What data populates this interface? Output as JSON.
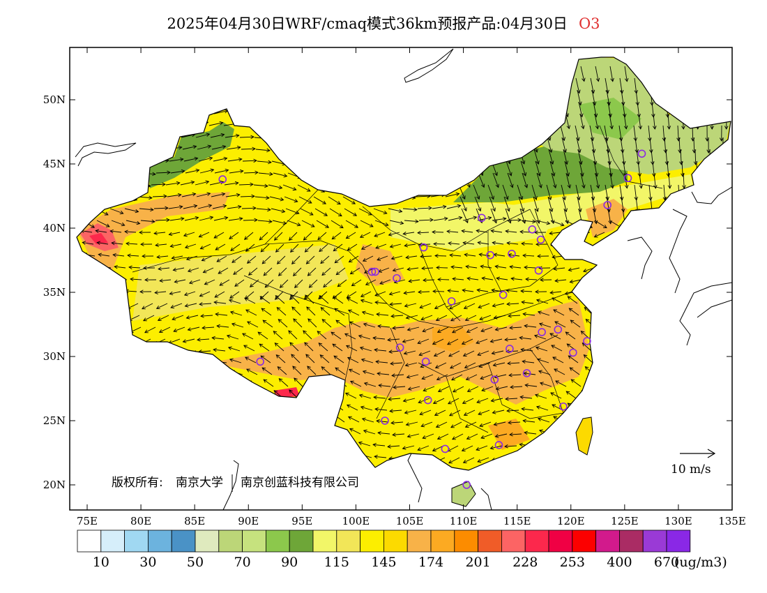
{
  "title": {
    "main": "2025年04月30日WRF/cmaq模式36km预报产品:04月30日",
    "pollutant": "O3"
  },
  "axes": {
    "lat_labels": [
      "50N",
      "45N",
      "40N",
      "35N",
      "30N",
      "25N",
      "20N"
    ],
    "lat_values": [
      50,
      45,
      40,
      35,
      30,
      25,
      20
    ],
    "lon_labels": [
      "75E",
      "80E",
      "85E",
      "90E",
      "95E",
      "100E",
      "105E",
      "110E",
      "115E",
      "120E",
      "125E",
      "130E",
      "135E"
    ],
    "lon_values": [
      75,
      80,
      85,
      90,
      95,
      100,
      105,
      110,
      115,
      120,
      125,
      130,
      135
    ],
    "lon_range": [
      73,
      135
    ],
    "lat_range": [
      18,
      54
    ]
  },
  "colorbar": {
    "colors": [
      "#ffffff",
      "#d6eefa",
      "#a0d8f2",
      "#6cb3de",
      "#4a92c6",
      "#dfeabe",
      "#bcd678",
      "#c6e27e",
      "#8cc84c",
      "#6ea638",
      "#f2f668",
      "#f2e658",
      "#fcee00",
      "#fcda00",
      "#f8b248",
      "#fcaa22",
      "#fc8c00",
      "#f05c28",
      "#fc6464",
      "#fc284c",
      "#f00044",
      "#fc0000",
      "#d21a8c",
      "#aa2c64",
      "#9a3ad6",
      "#8a28e6"
    ],
    "labels": [
      "10",
      "30",
      "50",
      "70",
      "90",
      "115",
      "145",
      "174",
      "201",
      "228",
      "253",
      "400",
      "670"
    ],
    "unit": "(ug/m3)"
  },
  "copyright": {
    "prefix": "版权所有:",
    "org1": "南京大学",
    "org2": "南京创蓝科技有限公司"
  },
  "wind_reference": {
    "label": "10 m/s"
  },
  "stations": [
    {
      "lon": 87.6,
      "lat": 43.8
    },
    {
      "lon": 91.1,
      "lat": 29.6
    },
    {
      "lon": 101.8,
      "lat": 36.6
    },
    {
      "lon": 103.8,
      "lat": 36.1
    },
    {
      "lon": 106.3,
      "lat": 38.5
    },
    {
      "lon": 104.1,
      "lat": 30.7
    },
    {
      "lon": 106.5,
      "lat": 29.6
    },
    {
      "lon": 106.7,
      "lat": 26.6
    },
    {
      "lon": 102.7,
      "lat": 25.0
    },
    {
      "lon": 108.9,
      "lat": 34.3
    },
    {
      "lon": 111.7,
      "lat": 40.8
    },
    {
      "lon": 112.5,
      "lat": 37.9
    },
    {
      "lon": 114.5,
      "lat": 38.0
    },
    {
      "lon": 116.4,
      "lat": 39.9
    },
    {
      "lon": 117.2,
      "lat": 39.1
    },
    {
      "lon": 117.0,
      "lat": 36.7
    },
    {
      "lon": 113.7,
      "lat": 34.8
    },
    {
      "lon": 114.3,
      "lat": 30.6
    },
    {
      "lon": 112.9,
      "lat": 28.2
    },
    {
      "lon": 115.9,
      "lat": 28.7
    },
    {
      "lon": 117.3,
      "lat": 31.9
    },
    {
      "lon": 118.8,
      "lat": 32.1
    },
    {
      "lon": 120.2,
      "lat": 30.3
    },
    {
      "lon": 121.5,
      "lat": 31.2
    },
    {
      "lon": 119.3,
      "lat": 26.1
    },
    {
      "lon": 113.3,
      "lat": 23.1
    },
    {
      "lon": 108.3,
      "lat": 22.8
    },
    {
      "lon": 110.3,
      "lat": 20.0
    },
    {
      "lon": 123.4,
      "lat": 41.8
    },
    {
      "lon": 125.3,
      "lat": 43.9
    },
    {
      "lon": 126.6,
      "lat": 45.8
    },
    {
      "lon": 101.5,
      "lat": 36.6
    }
  ]
}
